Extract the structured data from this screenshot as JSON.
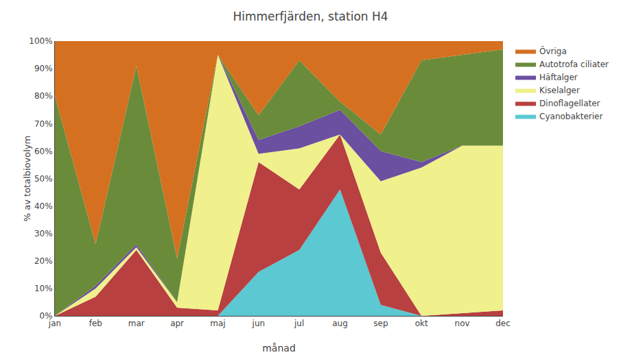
{
  "chart_data": {
    "type": "area",
    "stacked": true,
    "title": "Himmerfjärden, station H4",
    "xlabel": "månad",
    "ylabel": "% av totalbiovolym",
    "categories": [
      "jan",
      "feb",
      "mar",
      "apr",
      "maj",
      "jun",
      "jul",
      "aug",
      "sep",
      "okt",
      "nov",
      "dec"
    ],
    "series": [
      {
        "name": "Cyanobakterier",
        "color": "#5bc8d2",
        "values": [
          0,
          0,
          0,
          0,
          0,
          16,
          24,
          46,
          4,
          0,
          0,
          0
        ]
      },
      {
        "name": "Dinoflagellater",
        "color": "#b94040",
        "values": [
          0,
          7,
          24,
          3,
          2,
          40,
          22,
          20,
          19,
          0,
          1,
          2
        ]
      },
      {
        "name": "Kiselalger",
        "color": "#f0f08c",
        "values": [
          0,
          3,
          1,
          2,
          93,
          3,
          15,
          0,
          26,
          54,
          61,
          60
        ]
      },
      {
        "name": "Häftalger",
        "color": "#6b4fa0",
        "values": [
          0,
          1,
          1,
          0,
          0,
          5,
          8,
          9,
          11,
          2,
          0,
          0
        ]
      },
      {
        "name": "Autotrofa ciliater",
        "color": "#6a8c3a",
        "values": [
          80,
          15,
          65,
          16,
          0,
          9,
          24,
          3,
          6,
          37,
          33,
          35
        ]
      },
      {
        "name": "Övriga",
        "color": "#d47020",
        "values": [
          20,
          74,
          9,
          79,
          5,
          27,
          7,
          22,
          34,
          7,
          5,
          3
        ]
      }
    ],
    "ylim": [
      0,
      100
    ],
    "yticks": [
      {
        "value": 0,
        "label": "0%"
      },
      {
        "value": 10,
        "label": "10%"
      },
      {
        "value": 20,
        "label": "20%"
      },
      {
        "value": 30,
        "label": "30%"
      },
      {
        "value": 40,
        "label": "40%"
      },
      {
        "value": 50,
        "label": "50%"
      },
      {
        "value": 60,
        "label": "60%"
      },
      {
        "value": 70,
        "label": "70%"
      },
      {
        "value": 80,
        "label": "80%"
      },
      {
        "value": 90,
        "label": "90%"
      },
      {
        "value": 100,
        "label": "100%"
      }
    ],
    "grid": true,
    "legend": "right"
  }
}
